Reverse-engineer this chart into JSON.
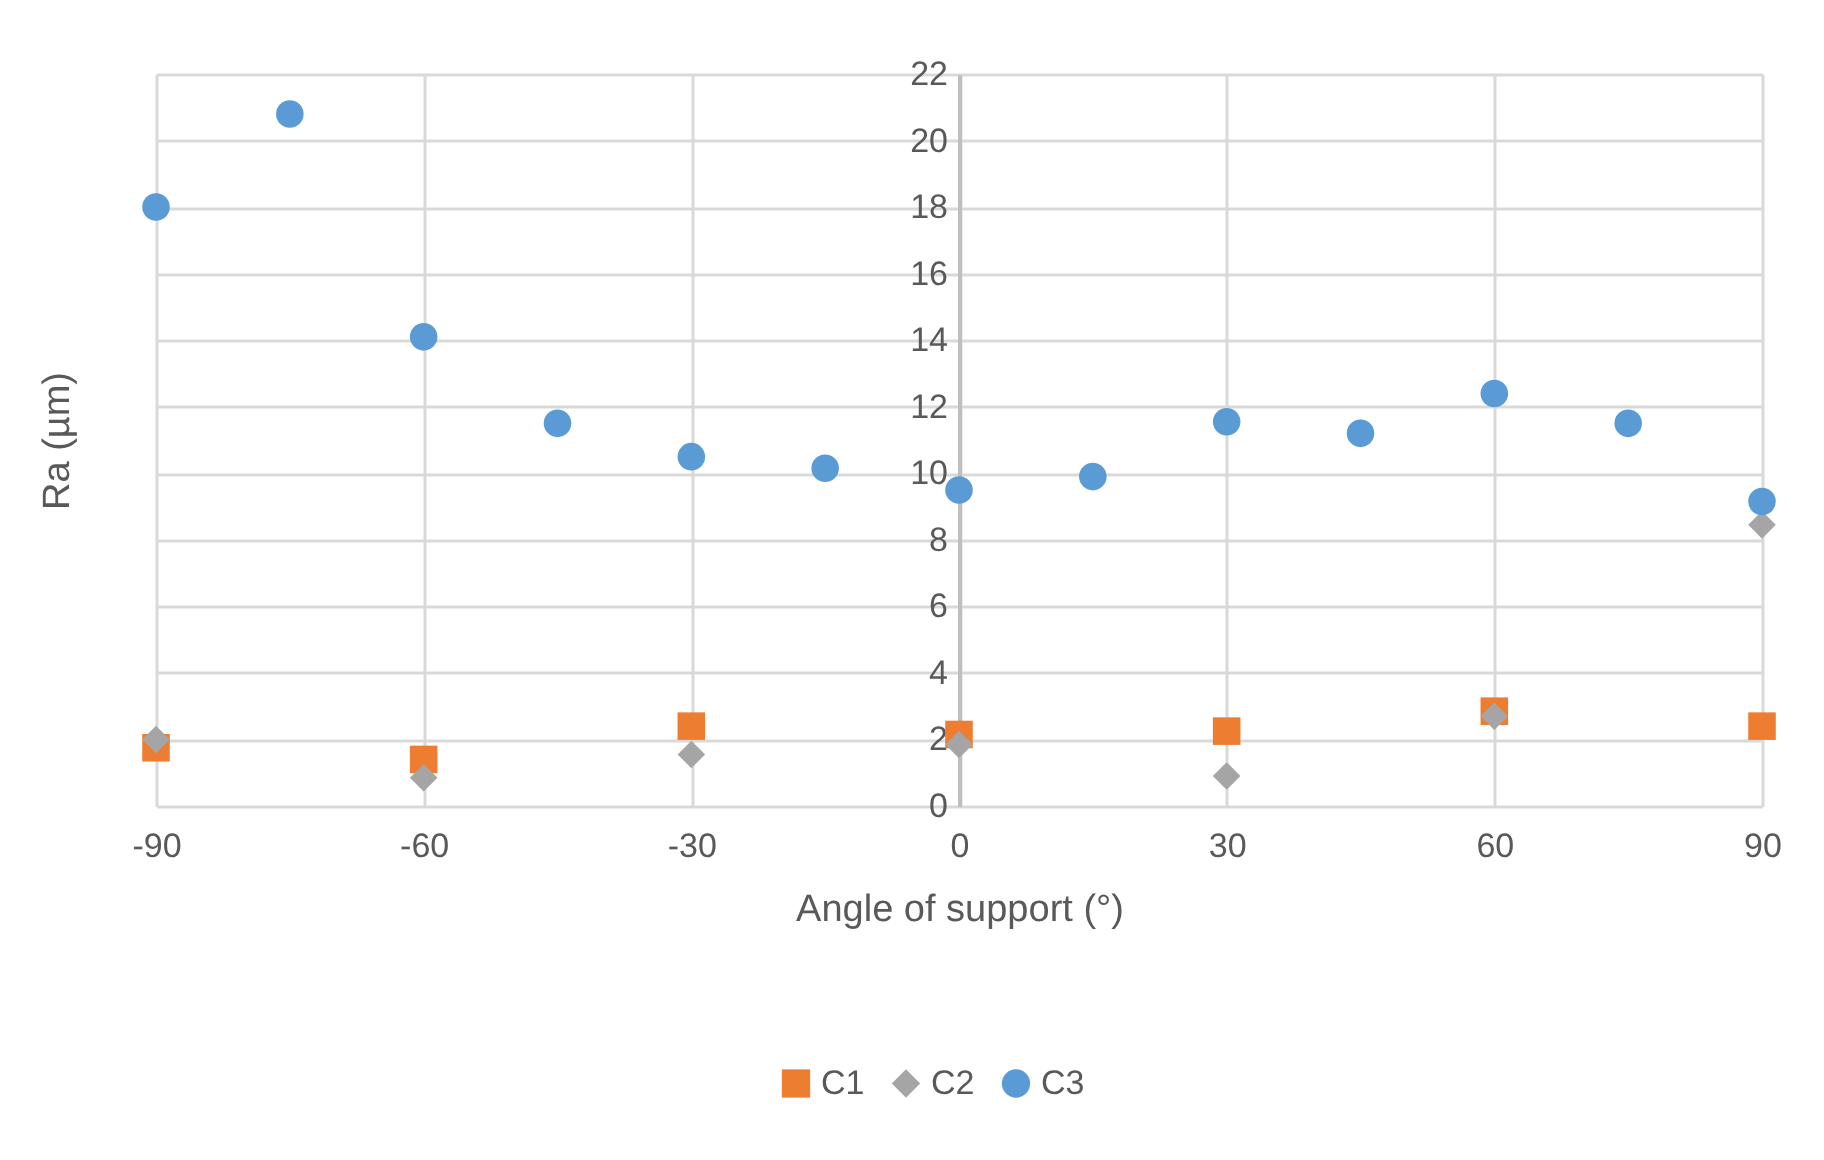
{
  "chart_data": {
    "type": "scatter",
    "xlabel": "Angle of support (°)",
    "ylabel": "Ra (µm)",
    "xlim": [
      -90,
      90
    ],
    "xticks": [
      -90,
      -60,
      -30,
      0,
      30,
      60,
      90
    ],
    "ylim": [
      0,
      22
    ],
    "yticks": [
      0,
      2,
      4,
      6,
      8,
      10,
      12,
      14,
      16,
      18,
      20,
      22
    ],
    "grid": true,
    "legend": "bottom",
    "series": [
      {
        "name": "C1",
        "color": "#ed7d31",
        "marker": "square",
        "x": [
          -90,
          -60,
          -30,
          0,
          30,
          60,
          90
        ],
        "values": [
          1.75,
          1.4,
          2.4,
          2.15,
          2.25,
          2.85,
          2.4
        ]
      },
      {
        "name": "C2",
        "color": "#a5a5a5",
        "marker": "diamond",
        "x": [
          -90,
          -60,
          -30,
          0,
          30,
          60,
          90
        ],
        "values": [
          2.0,
          0.85,
          1.55,
          1.85,
          0.9,
          2.7,
          8.45
        ]
      },
      {
        "name": "C3",
        "color": "#5b9bd5",
        "marker": "circle",
        "x": [
          -90,
          -75,
          -60,
          -45,
          -30,
          -15,
          0,
          15,
          30,
          45,
          60,
          75,
          90
        ],
        "values": [
          18.0,
          20.8,
          14.1,
          11.5,
          10.5,
          10.15,
          9.5,
          9.9,
          11.55,
          11.2,
          12.4,
          11.5,
          9.15
        ]
      }
    ]
  }
}
